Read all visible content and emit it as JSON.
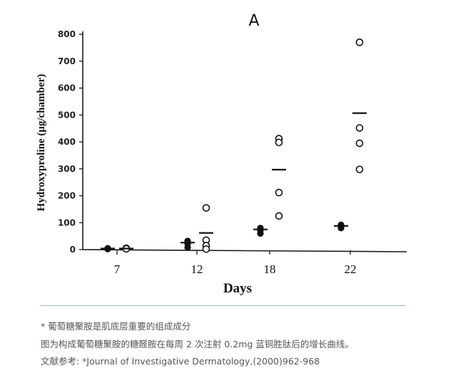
{
  "chart_data": {
    "type": "scatter",
    "panel_label": "A",
    "xlabel": "Days",
    "ylabel": "Hydroxyproline (μg/chamber)",
    "ylim": [
      0,
      800
    ],
    "yticks": [
      0,
      100,
      200,
      300,
      400,
      500,
      600,
      700,
      800
    ],
    "categories": [
      "7",
      "12",
      "18",
      "22"
    ],
    "grid": false,
    "series": [
      {
        "marker": "filled-circle",
        "points": {
          "7": [
            5,
            3,
            2
          ],
          "12": [
            32,
            28,
            22,
            8
          ],
          "18": [
            80,
            72,
            60
          ],
          "22": [
            92,
            85,
            80
          ]
        },
        "means": {
          "7": 4,
          "12": 26,
          "18": 75,
          "22": 88
        }
      },
      {
        "marker": "open-circle",
        "points": {
          "7": [
            5,
            3
          ],
          "12": [
            155,
            35,
            15,
            2
          ],
          "18": [
            412,
            398,
            212,
            125
          ],
          "22": [
            770,
            452,
            395,
            298
          ]
        },
        "means": {
          "7": 4,
          "12": 62,
          "18": 297,
          "22": 507
        }
      }
    ]
  },
  "caption": {
    "line1": "* 葡萄糖聚胺是肌底层重要的组成成分",
    "line2": "图为构成葡萄糖聚胺的糖醛胺在每周 2 次注射 0.2mg 蓝铜胜肽后的增长曲线。",
    "line3": "文献参考: *Journal of Investigative Dermatology,(2000)962-968"
  }
}
